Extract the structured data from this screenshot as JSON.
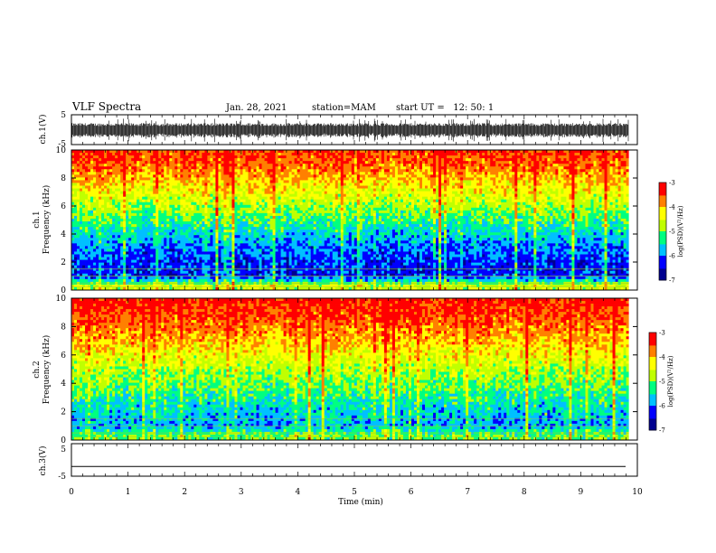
{
  "header": {
    "title": "VLF Spectra",
    "date": "Jan. 28, 2021",
    "station": "station=MAM",
    "start": "start UT =   12: 50: 1"
  },
  "chart_data": [
    {
      "type": "line",
      "panel": "ch1-waveform",
      "ylabel": "ch.1(V)",
      "ylim": [
        -5,
        5
      ],
      "yticks": [
        "5",
        "-5"
      ],
      "description_values": "noisy waveform, mostly between -2 and 2 V",
      "x": [
        0,
        10
      ],
      "xlim": [
        0,
        10
      ]
    },
    {
      "type": "heatmap",
      "panel": "ch1-spectrogram",
      "ylabel": "ch.1\nFrequency (kHz)",
      "ylabel_lines": [
        "ch.1",
        "Frequency (kHz)"
      ],
      "ylim": [
        0,
        10
      ],
      "yticks": [
        "0",
        "2",
        "4",
        "6",
        "8",
        "10"
      ],
      "xlim": [
        0,
        9.85
      ],
      "colorbar": {
        "label": "log(PSD)(V²/Hz)",
        "range": [
          -7,
          -3
        ],
        "ticks": [
          "-3",
          "-4",
          "-5",
          "-6",
          "-7"
        ]
      },
      "profile_khz_vs_logpsd": [
        [
          0.3,
          -4.6
        ],
        [
          1,
          -6.3
        ],
        [
          2,
          -6.2
        ],
        [
          3,
          -6.0
        ],
        [
          4,
          -5.6
        ],
        [
          5,
          -5.2
        ],
        [
          6,
          -4.8
        ],
        [
          7,
          -4.4
        ],
        [
          8,
          -4.0
        ],
        [
          9,
          -3.6
        ],
        [
          10,
          -3.4
        ]
      ]
    },
    {
      "type": "heatmap",
      "panel": "ch2-spectrogram",
      "ylabel": "ch.2\nFrequency (kHz)",
      "ylabel_lines": [
        "ch.2",
        "Frequency (kHz)"
      ],
      "ylim": [
        0,
        10
      ],
      "yticks": [
        "0",
        "2",
        "4",
        "6",
        "8",
        "10"
      ],
      "xlim": [
        0,
        9.85
      ],
      "colorbar": {
        "label": "log(PSD)(V²/Hz)",
        "range": [
          -7,
          -3
        ],
        "ticks": [
          "-3",
          "-4",
          "-5",
          "-6",
          "-7"
        ]
      },
      "profile_khz_vs_logpsd": [
        [
          0.3,
          -5.0
        ],
        [
          1,
          -5.8
        ],
        [
          2,
          -5.6
        ],
        [
          3,
          -5.3
        ],
        [
          4,
          -5.0
        ],
        [
          5,
          -4.7
        ],
        [
          6,
          -4.4
        ],
        [
          7,
          -4.0
        ],
        [
          8,
          -3.7
        ],
        [
          9,
          -3.4
        ],
        [
          10,
          -3.2
        ]
      ]
    },
    {
      "type": "line",
      "panel": "ch3-waveform",
      "ylabel": "ch.3(V)",
      "ylim": [
        -5,
        5
      ],
      "yticks": [
        "5",
        "-5"
      ],
      "constant_value": -2,
      "xlim": [
        0,
        10
      ]
    }
  ],
  "xaxis": {
    "label": "Time (min)",
    "range": [
      0,
      10
    ],
    "ticks": [
      "0",
      "1",
      "2",
      "3",
      "4",
      "5",
      "6",
      "7",
      "8",
      "9",
      "10"
    ]
  },
  "colors": {
    "colormap": [
      "#00008f",
      "#0000ff",
      "#00c0ff",
      "#00ff80",
      "#c0ff00",
      "#ffff00",
      "#ff8000",
      "#ff0000",
      "#ffd0d0"
    ]
  }
}
